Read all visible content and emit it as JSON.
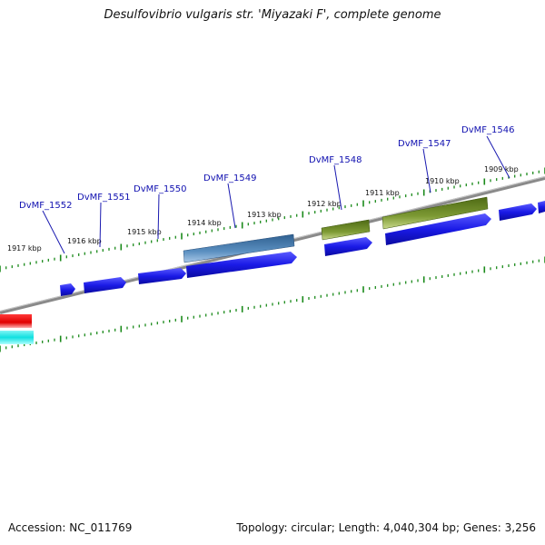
{
  "title": "Desulfovibrio vulgaris str. 'Miyazaki F', complete genome",
  "footer": {
    "accession": "Accession: NC_011769",
    "stats": "Topology: circular; Length: 4,040,304 bp; Genes: 3,256"
  },
  "colors": {
    "cds_blue": "#1a1ae6",
    "gene_steelblue": "#4a7fb0",
    "gene_olive": "#6e8e2a",
    "gene_red": "#e00000",
    "gene_cyan": "#10e0e0",
    "backbone": "#8a8a8a",
    "tick_green": "#1a8a1a",
    "label_blue": "#1010b0"
  },
  "kbp_labels": [
    "1917 kbp",
    "1916 kbp",
    "1915 kbp",
    "1914 kbp",
    "1913 kbp",
    "1912 kbp",
    "1911 kbp",
    "1910 kbp",
    "1909 kbp"
  ],
  "gene_labels": [
    "DvMF_1552",
    "DvMF_1551",
    "DvMF_1550",
    "DvMF_1549",
    "DvMF_1548",
    "DvMF_1547",
    "DvMF_1546"
  ]
}
